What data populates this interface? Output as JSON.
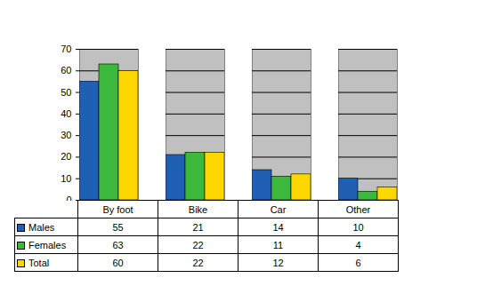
{
  "chart_data": {
    "type": "bar",
    "categories": [
      "By foot",
      "Bike",
      "Car",
      "Other"
    ],
    "series": [
      {
        "name": "Males",
        "color": "#1f5fb4",
        "values": [
          55,
          21,
          14,
          10
        ]
      },
      {
        "name": "Females",
        "color": "#3cb83c",
        "values": [
          63,
          22,
          11,
          4
        ]
      },
      {
        "name": "Total",
        "color": "#ffd700",
        "values": [
          60,
          22,
          12,
          6
        ]
      }
    ],
    "ylim": [
      0,
      70
    ],
    "yticks": [
      0,
      10,
      20,
      30,
      40,
      50,
      60,
      70
    ],
    "grid": true
  }
}
